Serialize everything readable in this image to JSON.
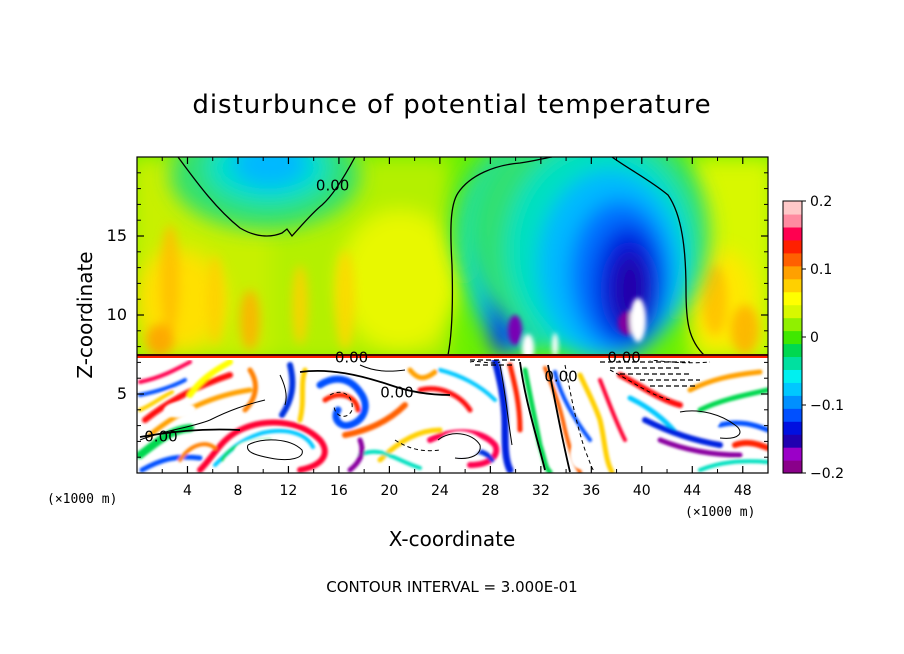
{
  "chart_data": {
    "type": "heatmap",
    "title": "disturbunce of potential temperature",
    "xlabel": "X-coordinate",
    "ylabel": "Z-coordinate",
    "x_unit": "(×1000 m)",
    "xlim": [
      0,
      50
    ],
    "ylim": [
      0,
      20
    ],
    "x_ticks": [
      4,
      8,
      12,
      16,
      20,
      24,
      28,
      32,
      36,
      40,
      44,
      48
    ],
    "y_ticks": [
      5,
      10,
      15
    ],
    "colorbar": {
      "min": -0.2,
      "max": 0.2,
      "tick_values": [
        0.2,
        0.1,
        0,
        -0.1,
        -0.2
      ],
      "tick_labels": [
        "0.2",
        "0.1",
        "0",
        "−0.1",
        "−0.2"
      ],
      "colors": [
        "#8a008a",
        "#9b00c8",
        "#2000b0",
        "#0010e0",
        "#0050ff",
        "#0090ff",
        "#00c8ff",
        "#00f0f0",
        "#00e0a0",
        "#00d850",
        "#40e800",
        "#90f000",
        "#d8f800",
        "#ffff00",
        "#ffd000",
        "#ffa000",
        "#ff6000",
        "#ff2000",
        "#ff0050",
        "#ff8aa0",
        "#ffc8c8"
      ]
    },
    "contour_labels": [
      {
        "text": "0.00",
        "x": 15.5,
        "z": 18.2
      },
      {
        "text": "0.00",
        "x": 17.0,
        "z": 7.3
      },
      {
        "text": "0.00",
        "x": 20.6,
        "z": 5.1
      },
      {
        "text": "0.00",
        "x": 1.9,
        "z": 2.3
      },
      {
        "text": "0.00",
        "x": 38.6,
        "z": 7.3
      },
      {
        "text": "0.00",
        "x": 33.6,
        "z": 6.1
      }
    ],
    "footer": "CONTOUR INTERVAL = 3.000E-01"
  }
}
